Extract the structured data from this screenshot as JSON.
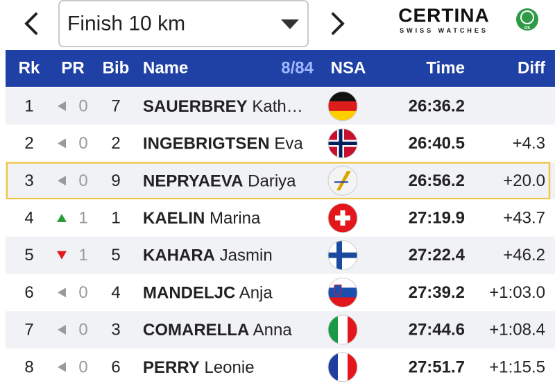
{
  "header": {
    "dropdown": "Finish 10 km",
    "logo": {
      "brand": "CERTINA",
      "tagline": "SWISS WATCHES",
      "badge": "DS"
    }
  },
  "table": {
    "columns": {
      "rank": "Rk",
      "pr": "PR",
      "bib": "Bib",
      "name": "Name",
      "count": "8/84",
      "nsa": "NSA",
      "time": "Time",
      "diff": "Diff"
    },
    "rows": [
      {
        "rank": 1,
        "trend": "same",
        "pr": 0,
        "bib": 7,
        "surname": "SAUERBREY",
        "firstname": "Kath…",
        "flag": "GER",
        "time": "26:36.2"
      },
      {
        "rank": 2,
        "trend": "same",
        "pr": 0,
        "bib": 2,
        "surname": "INGEBRIGTSEN",
        "firstname": "Eva",
        "flag": "NOR",
        "time": "26:40.5",
        "diff": "+4.3"
      },
      {
        "rank": 3,
        "trend": "same",
        "pr": 0,
        "bib": 9,
        "surname": "NEPRYAEVA",
        "firstname": "Dariya",
        "flag": "FIS",
        "time": "26:56.2",
        "diff": "+20.0",
        "highlight": true
      },
      {
        "rank": 4,
        "trend": "up",
        "pr": 1,
        "bib": 1,
        "surname": "KAELIN",
        "firstname": "Marina",
        "flag": "SUI",
        "time": "27:19.9",
        "diff": "+43.7"
      },
      {
        "rank": 5,
        "trend": "down",
        "pr": 1,
        "bib": 5,
        "surname": "KAHARA",
        "firstname": "Jasmin",
        "flag": "FIN",
        "time": "27:22.4",
        "diff": "+46.2"
      },
      {
        "rank": 6,
        "trend": "same",
        "pr": 0,
        "bib": 4,
        "surname": "MANDELJC",
        "firstname": "Anja",
        "flag": "SLO",
        "time": "27:39.2",
        "diff": "+1:03.0"
      },
      {
        "rank": 7,
        "trend": "same",
        "pr": 0,
        "bib": 3,
        "surname": "COMARELLA",
        "firstname": "Anna",
        "flag": "ITA",
        "time": "27:44.6",
        "diff": "+1:08.4"
      },
      {
        "rank": 8,
        "trend": "same",
        "pr": 0,
        "bib": 6,
        "surname": "PERRY",
        "firstname": "Leonie",
        "flag": "FRA",
        "time": "27:51.7",
        "diff": "+1:15.5"
      }
    ]
  }
}
